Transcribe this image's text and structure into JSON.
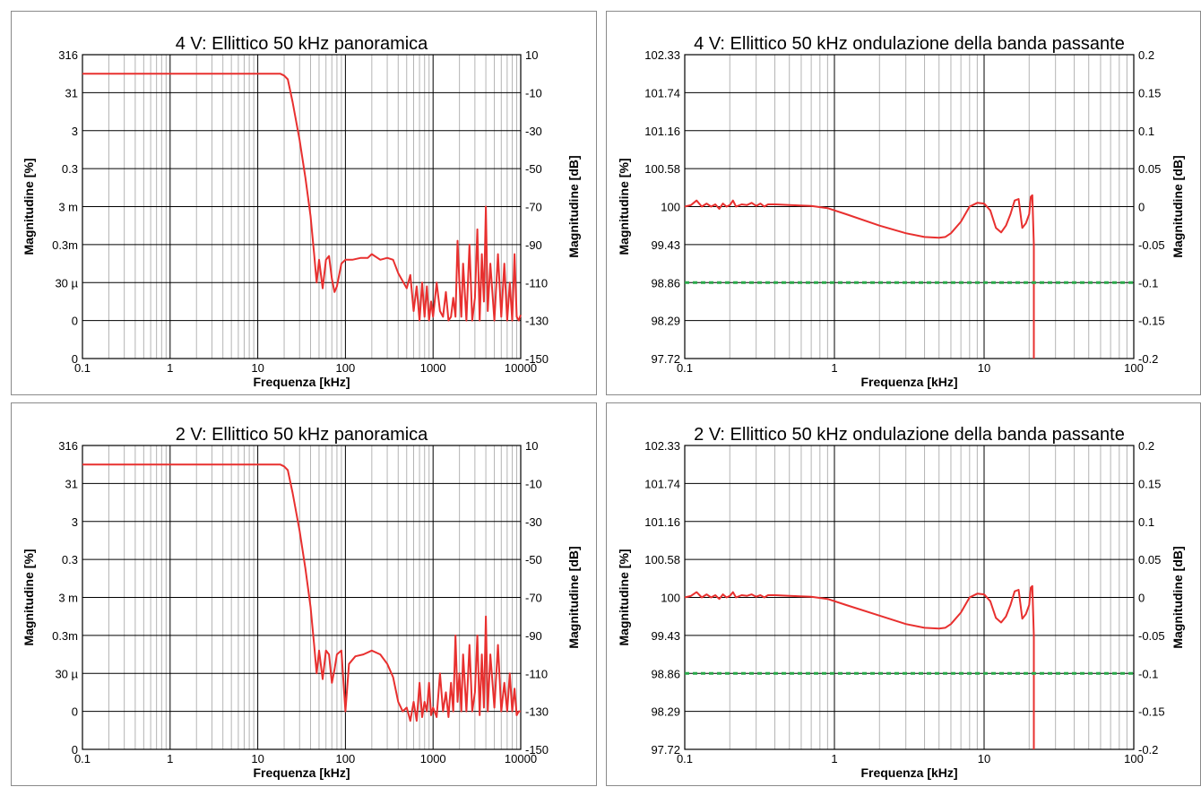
{
  "chart_data": [
    {
      "id": "p0",
      "type": "line",
      "title": "4 V: Ellittico 50 kHz panoramica",
      "xlabel": "Frequenza [kHz]",
      "ylabel_left": "Magnitudine [%]",
      "ylabel_right": "Magnitudine [dB]",
      "x_scale": "log",
      "xlim": [
        0.1,
        10000
      ],
      "x_ticks": [
        0.1,
        1,
        10,
        100,
        1000,
        10000
      ],
      "x_tick_labels": [
        "0.1",
        "1",
        "10",
        "100",
        "1000",
        "10000"
      ],
      "y_right_lim": [
        -150,
        10
      ],
      "y_right_ticks": [
        10,
        -10,
        -30,
        -50,
        -70,
        -90,
        -110,
        -130,
        -150
      ],
      "y_left_tick_labels": [
        "316",
        "31",
        "3",
        "0.3",
        "3 m",
        "0.3m",
        "30 µ",
        "0",
        "0"
      ],
      "grid": true,
      "series": [
        {
          "color": "#e8302f",
          "x": [
            0.1,
            1,
            10,
            18,
            20,
            22,
            25,
            30,
            35,
            40,
            44,
            47,
            50,
            55,
            60,
            65,
            70,
            75,
            80,
            90,
            100,
            120,
            150,
            180,
            200,
            250,
            300,
            350,
            400,
            500,
            550,
            600,
            650,
            700,
            750,
            800,
            850,
            900,
            950,
            1000,
            1100,
            1200,
            1300,
            1400,
            1500,
            1600,
            1700,
            1800,
            1900,
            2000,
            2100,
            2200,
            2400,
            2600,
            2800,
            3000,
            3200,
            3400,
            3600,
            3800,
            4000,
            4200,
            4500,
            5000,
            5500,
            6000,
            6500,
            7000,
            7500,
            8000,
            8500,
            9000,
            9500,
            10000
          ],
          "y": [
            0,
            0,
            0,
            0,
            -1,
            -3,
            -15,
            -35,
            -55,
            -75,
            -95,
            -110,
            -98,
            -113,
            -98,
            -96,
            -108,
            -115,
            -112,
            -100,
            -98,
            -98,
            -97,
            -97,
            -95,
            -98,
            -97,
            -98,
            -105,
            -113,
            -106,
            -125,
            -112,
            -130,
            -110,
            -128,
            -112,
            -130,
            -120,
            -128,
            -110,
            -125,
            -128,
            -115,
            -130,
            -128,
            -118,
            -128,
            -88,
            -110,
            -128,
            -100,
            -130,
            -90,
            -130,
            -118,
            -82,
            -130,
            -95,
            -120,
            -70,
            -125,
            -100,
            -130,
            -95,
            -128,
            -100,
            -130,
            -110,
            -130,
            -95,
            -128,
            -130,
            -127
          ]
        }
      ]
    },
    {
      "id": "p1",
      "type": "line",
      "title": "4 V: Ellittico 50 kHz ondulazione della banda passante",
      "xlabel": "Frequenza [kHz]",
      "ylabel_left": "Magnitudine [%]",
      "ylabel_right": "Magnitudine [dB]",
      "x_scale": "log",
      "xlim": [
        0.1,
        100
      ],
      "x_ticks": [
        0.1,
        1,
        10,
        100
      ],
      "x_tick_labels": [
        "0.1",
        "1",
        "10",
        "100"
      ],
      "y_right_lim": [
        -0.2,
        0.2
      ],
      "y_right_ticks": [
        0.2,
        0.15,
        0.1,
        0.05,
        0,
        -0.05,
        -0.1,
        -0.15,
        -0.2
      ],
      "y_right_tick_labels": [
        "0.2",
        "0.15",
        "0.1",
        "0.05",
        "0",
        "-0.05",
        "-0.1",
        "-0.15",
        "-0.2"
      ],
      "y_left_tick_labels": [
        "102.33",
        "101.74",
        "101.16",
        "100.58",
        "100",
        "99.43",
        "98.86",
        "98.29",
        "97.72"
      ],
      "grid": true,
      "series": [
        {
          "color": "#e8302f",
          "x": [
            0.1,
            0.11,
            0.12,
            0.13,
            0.14,
            0.15,
            0.16,
            0.17,
            0.18,
            0.19,
            0.2,
            0.21,
            0.22,
            0.24,
            0.26,
            0.28,
            0.3,
            0.32,
            0.34,
            0.36,
            0.4,
            0.5,
            0.7,
            0.9,
            1.2,
            2,
            3,
            4,
            5,
            5.5,
            6,
            7,
            8,
            9,
            10,
            11,
            12,
            13,
            14,
            15,
            16,
            17,
            18,
            19,
            20,
            20.5,
            21,
            21.5,
            21.5
          ],
          "y": [
            0,
            0.002,
            0.008,
            0,
            0.004,
            0,
            0.003,
            -0.003,
            0.004,
            0,
            0.002,
            0.008,
            0,
            0.003,
            0.002,
            0.005,
            0.001,
            0.004,
            0,
            0.003,
            0.003,
            0.002,
            0.001,
            -0.002,
            -0.01,
            -0.025,
            -0.035,
            -0.04,
            -0.041,
            -0.04,
            -0.035,
            -0.02,
            0,
            0.005,
            0.004,
            -0.005,
            -0.028,
            -0.034,
            -0.025,
            -0.01,
            0.008,
            0.01,
            -0.028,
            -0.022,
            -0.01,
            0.013,
            0.015,
            -0.05,
            -0.2
          ]
        },
        {
          "color": "#2aa84a",
          "x": [
            0.1,
            100
          ],
          "y": [
            -0.1,
            -0.1
          ]
        }
      ]
    },
    {
      "id": "p2",
      "type": "line",
      "title": "2 V: Ellittico 50 kHz panoramica",
      "xlabel": "Frequenza [kHz]",
      "ylabel_left": "Magnitudine [%]",
      "ylabel_right": "Magnitudine [dB]",
      "x_scale": "log",
      "xlim": [
        0.1,
        10000
      ],
      "x_ticks": [
        0.1,
        1,
        10,
        100,
        1000,
        10000
      ],
      "x_tick_labels": [
        "0.1",
        "1",
        "10",
        "100",
        "1000",
        "10000"
      ],
      "y_right_lim": [
        -150,
        10
      ],
      "y_right_ticks": [
        10,
        -10,
        -30,
        -50,
        -70,
        -90,
        -110,
        -130,
        -150
      ],
      "y_left_tick_labels": [
        "316",
        "31",
        "3",
        "0.3",
        "3 m",
        "0.3m",
        "30 µ",
        "0",
        "0"
      ],
      "grid": true,
      "series": [
        {
          "color": "#e8302f",
          "x": [
            0.1,
            1,
            10,
            18,
            20,
            22,
            25,
            30,
            35,
            40,
            44,
            47,
            50,
            55,
            60,
            65,
            70,
            75,
            80,
            90,
            100,
            110,
            130,
            160,
            200,
            250,
            300,
            350,
            400,
            450,
            500,
            550,
            600,
            650,
            700,
            750,
            800,
            850,
            900,
            950,
            1000,
            1100,
            1200,
            1300,
            1400,
            1500,
            1600,
            1700,
            1800,
            1900,
            2000,
            2100,
            2200,
            2400,
            2600,
            2800,
            3000,
            3200,
            3400,
            3600,
            3800,
            4000,
            4200,
            4500,
            5000,
            5500,
            6000,
            6500,
            7000,
            7500,
            8000,
            8500,
            9000,
            9500,
            10000
          ],
          "y": [
            0,
            0,
            0,
            0,
            -1,
            -3,
            -15,
            -35,
            -55,
            -75,
            -95,
            -110,
            -98,
            -113,
            -98,
            -100,
            -115,
            -108,
            -100,
            -98,
            -130,
            -105,
            -101,
            -100,
            -98,
            -100,
            -105,
            -112,
            -125,
            -130,
            -128,
            -135,
            -125,
            -135,
            -115,
            -133,
            -125,
            -130,
            -115,
            -132,
            -128,
            -133,
            -110,
            -130,
            -120,
            -133,
            -115,
            -130,
            -90,
            -125,
            -110,
            -130,
            -100,
            -130,
            -95,
            -130,
            -120,
            -90,
            -132,
            -100,
            -128,
            -80,
            -130,
            -100,
            -128,
            -95,
            -130,
            -115,
            -130,
            -110,
            -130,
            -118,
            -132,
            -130,
            -130
          ]
        }
      ]
    },
    {
      "id": "p3",
      "type": "line",
      "title": "2 V: Ellittico 50 kHz ondulazione della banda passante",
      "xlabel": "Frequenza [kHz]",
      "ylabel_left": "Magnitudine [%]",
      "ylabel_right": "Magnitudine [dB]",
      "x_scale": "log",
      "xlim": [
        0.1,
        100
      ],
      "x_ticks": [
        0.1,
        1,
        10,
        100
      ],
      "x_tick_labels": [
        "0.1",
        "1",
        "10",
        "100"
      ],
      "y_right_lim": [
        -0.2,
        0.2
      ],
      "y_right_ticks": [
        0.2,
        0.15,
        0.1,
        0.05,
        0,
        -0.05,
        -0.1,
        -0.15,
        -0.2
      ],
      "y_right_tick_labels": [
        "0.2",
        "0.15",
        "0.1",
        "0.05",
        "0",
        "-0.05",
        "-0.1",
        "-0.15",
        "-0.2"
      ],
      "y_left_tick_labels": [
        "102.33",
        "101.74",
        "101.16",
        "100.58",
        "100",
        "99.43",
        "98.86",
        "98.29",
        "97.72"
      ],
      "grid": true,
      "series": [
        {
          "color": "#e8302f",
          "x": [
            0.1,
            0.11,
            0.12,
            0.13,
            0.14,
            0.15,
            0.16,
            0.17,
            0.18,
            0.19,
            0.2,
            0.21,
            0.22,
            0.24,
            0.26,
            0.28,
            0.3,
            0.32,
            0.34,
            0.36,
            0.4,
            0.5,
            0.7,
            0.9,
            1.2,
            2,
            3,
            4,
            5,
            5.5,
            6,
            7,
            8,
            9,
            10,
            11,
            12,
            13,
            14,
            15,
            16,
            17,
            18,
            19,
            20,
            20.5,
            21,
            21.5,
            21.5
          ],
          "y": [
            0,
            0.002,
            0.007,
            0,
            0.004,
            0,
            0.003,
            -0.002,
            0.004,
            0,
            0.002,
            0.007,
            0,
            0.003,
            0.002,
            0.004,
            0.001,
            0.003,
            0,
            0.003,
            0.003,
            0.002,
            0.001,
            -0.002,
            -0.01,
            -0.024,
            -0.035,
            -0.04,
            -0.041,
            -0.04,
            -0.035,
            -0.02,
            0,
            0.005,
            0.004,
            -0.005,
            -0.027,
            -0.033,
            -0.025,
            -0.01,
            0.008,
            0.01,
            -0.028,
            -0.022,
            -0.01,
            0.013,
            0.015,
            -0.05,
            -0.2
          ]
        },
        {
          "color": "#2aa84a",
          "x": [
            0.1,
            100
          ],
          "y": [
            -0.1,
            -0.1
          ]
        }
      ]
    }
  ]
}
